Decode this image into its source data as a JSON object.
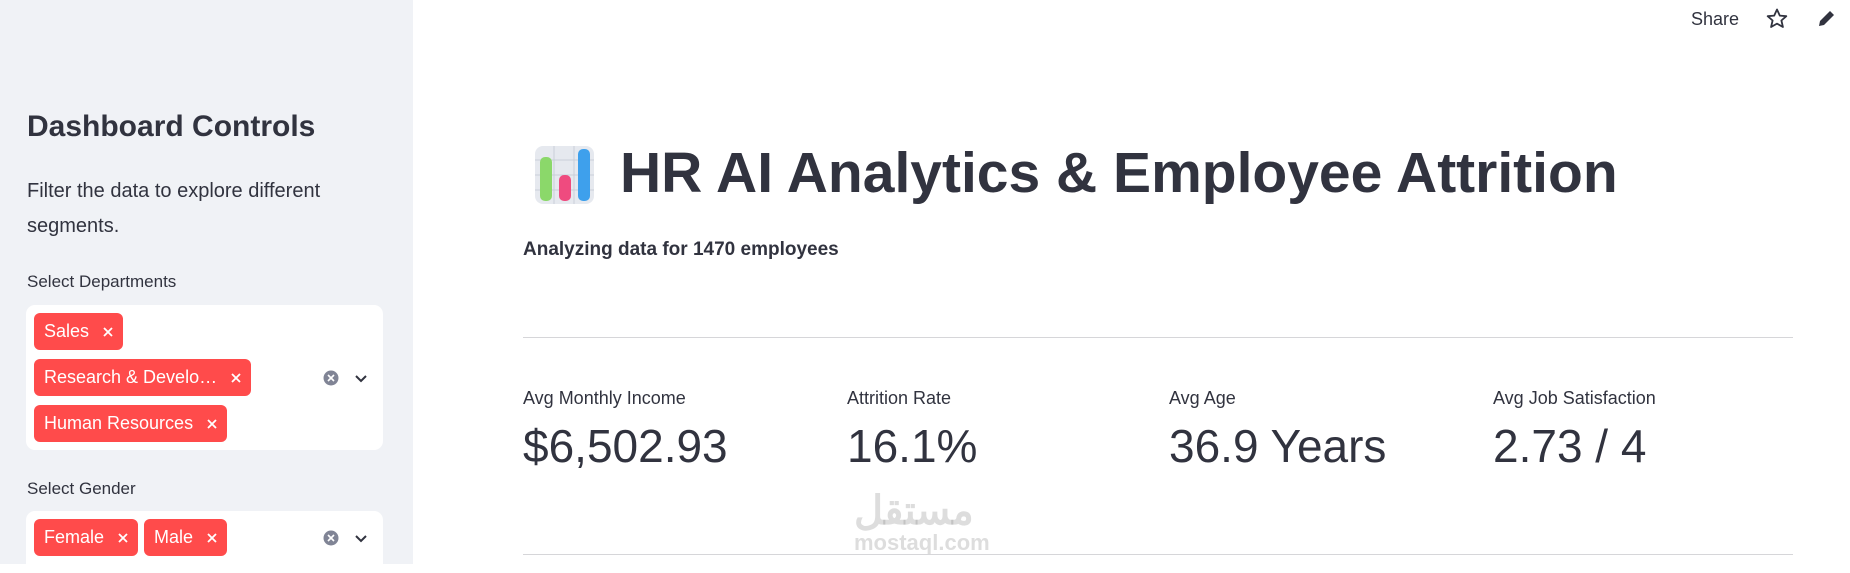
{
  "header": {
    "share": "Share"
  },
  "sidebar": {
    "title": "Dashboard Controls",
    "description": "Filter the data to explore different segments.",
    "filters": [
      {
        "label": "Select Departments",
        "tags": [
          "Sales",
          "Research & Develo…",
          "Human Resources"
        ]
      },
      {
        "label": "Select Gender",
        "tags": [
          "Female",
          "Male"
        ]
      }
    ]
  },
  "main": {
    "title": "HR AI Analytics & Employee Attrition",
    "subtitle": "Analyzing data for 1470 employees",
    "metrics": [
      {
        "label": "Avg Monthly Income",
        "value": "$6,502.93"
      },
      {
        "label": "Attrition Rate",
        "value": "16.1%"
      },
      {
        "label": "Avg Age",
        "value": "36.9 Years"
      },
      {
        "label": "Avg Job Satisfaction",
        "value": "2.73 / 4"
      }
    ]
  },
  "watermark": {
    "arabic": "مستقل",
    "latin": "mostaql.com"
  }
}
